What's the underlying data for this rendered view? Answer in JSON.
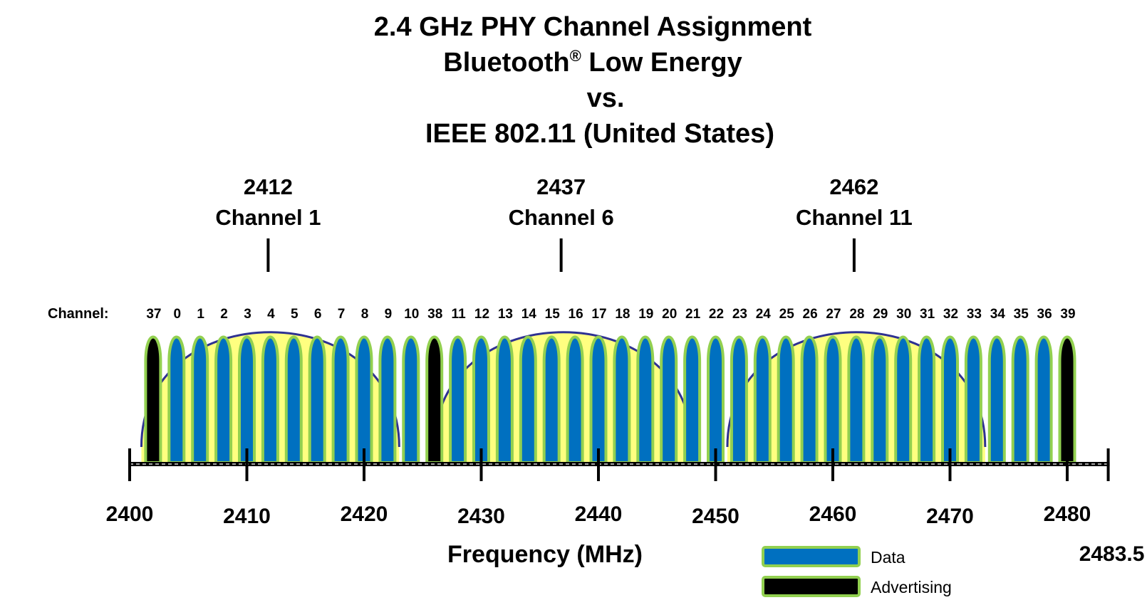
{
  "title": {
    "line1": "2.4 GHz PHY Channel Assignment",
    "line2_text": "Bluetooth",
    "line2_mark": "®",
    "line2_rest": " Low Energy",
    "line3": "vs.",
    "line4": "IEEE 802.11 (United States)"
  },
  "channel_prefix": "Channel:",
  "axis_title": "Frequency (MHz)",
  "wifi_channels": [
    {
      "freq": 2412,
      "freq_label": "2412",
      "name": "Channel 1"
    },
    {
      "freq": 2437,
      "freq_label": "2437",
      "name": "Channel 6"
    },
    {
      "freq": 2462,
      "freq_label": "2462",
      "name": "Channel 11"
    }
  ],
  "ble_channels": [
    {
      "label": "37",
      "freq": 2402,
      "type": "advertising"
    },
    {
      "label": "0",
      "freq": 2404,
      "type": "data"
    },
    {
      "label": "1",
      "freq": 2406,
      "type": "data"
    },
    {
      "label": "2",
      "freq": 2408,
      "type": "data"
    },
    {
      "label": "3",
      "freq": 2410,
      "type": "data"
    },
    {
      "label": "4",
      "freq": 2412,
      "type": "data"
    },
    {
      "label": "5",
      "freq": 2414,
      "type": "data"
    },
    {
      "label": "6",
      "freq": 2416,
      "type": "data"
    },
    {
      "label": "7",
      "freq": 2418,
      "type": "data"
    },
    {
      "label": "8",
      "freq": 2420,
      "type": "data"
    },
    {
      "label": "9",
      "freq": 2422,
      "type": "data"
    },
    {
      "label": "10",
      "freq": 2424,
      "type": "data"
    },
    {
      "label": "38",
      "freq": 2426,
      "type": "advertising"
    },
    {
      "label": "11",
      "freq": 2428,
      "type": "data"
    },
    {
      "label": "12",
      "freq": 2430,
      "type": "data"
    },
    {
      "label": "13",
      "freq": 2432,
      "type": "data"
    },
    {
      "label": "14",
      "freq": 2434,
      "type": "data"
    },
    {
      "label": "15",
      "freq": 2436,
      "type": "data"
    },
    {
      "label": "16",
      "freq": 2438,
      "type": "data"
    },
    {
      "label": "17",
      "freq": 2440,
      "type": "data"
    },
    {
      "label": "18",
      "freq": 2442,
      "type": "data"
    },
    {
      "label": "19",
      "freq": 2444,
      "type": "data"
    },
    {
      "label": "20",
      "freq": 2446,
      "type": "data"
    },
    {
      "label": "21",
      "freq": 2448,
      "type": "data"
    },
    {
      "label": "22",
      "freq": 2450,
      "type": "data"
    },
    {
      "label": "23",
      "freq": 2452,
      "type": "data"
    },
    {
      "label": "24",
      "freq": 2454,
      "type": "data"
    },
    {
      "label": "25",
      "freq": 2456,
      "type": "data"
    },
    {
      "label": "26",
      "freq": 2458,
      "type": "data"
    },
    {
      "label": "27",
      "freq": 2460,
      "type": "data"
    },
    {
      "label": "28",
      "freq": 2462,
      "type": "data"
    },
    {
      "label": "29",
      "freq": 2464,
      "type": "data"
    },
    {
      "label": "30",
      "freq": 2466,
      "type": "data"
    },
    {
      "label": "31",
      "freq": 2468,
      "type": "data"
    },
    {
      "label": "32",
      "freq": 2470,
      "type": "data"
    },
    {
      "label": "33",
      "freq": 2472,
      "type": "data"
    },
    {
      "label": "34",
      "freq": 2474,
      "type": "data"
    },
    {
      "label": "35",
      "freq": 2476,
      "type": "data"
    },
    {
      "label": "36",
      "freq": 2478,
      "type": "data"
    },
    {
      "label": "39",
      "freq": 2480,
      "type": "advertising"
    }
  ],
  "axis": {
    "min": 2400,
    "max": 2483.5,
    "ticks": [
      {
        "value": 2400,
        "label": "2400"
      },
      {
        "value": 2410,
        "label": "2410"
      },
      {
        "value": 2420,
        "label": "2420"
      },
      {
        "value": 2430,
        "label": "2430"
      },
      {
        "value": 2440,
        "label": "2440"
      },
      {
        "value": 2450,
        "label": "2450"
      },
      {
        "value": 2460,
        "label": "2460"
      },
      {
        "value": 2470,
        "label": "2470"
      },
      {
        "value": 2480,
        "label": "2480"
      },
      {
        "value": 2483.5,
        "label": "2483.5"
      }
    ]
  },
  "legend": [
    {
      "key": "data",
      "label": "Data"
    },
    {
      "key": "advertising",
      "label": "Advertising"
    }
  ],
  "colors": {
    "data_fill": "#0070c0",
    "advertising_fill": "#000000",
    "channel_outline": "#92d050",
    "wifi_fill": "#ffff80",
    "wifi_outline": "#2e3192",
    "axis": "#000000"
  }
}
